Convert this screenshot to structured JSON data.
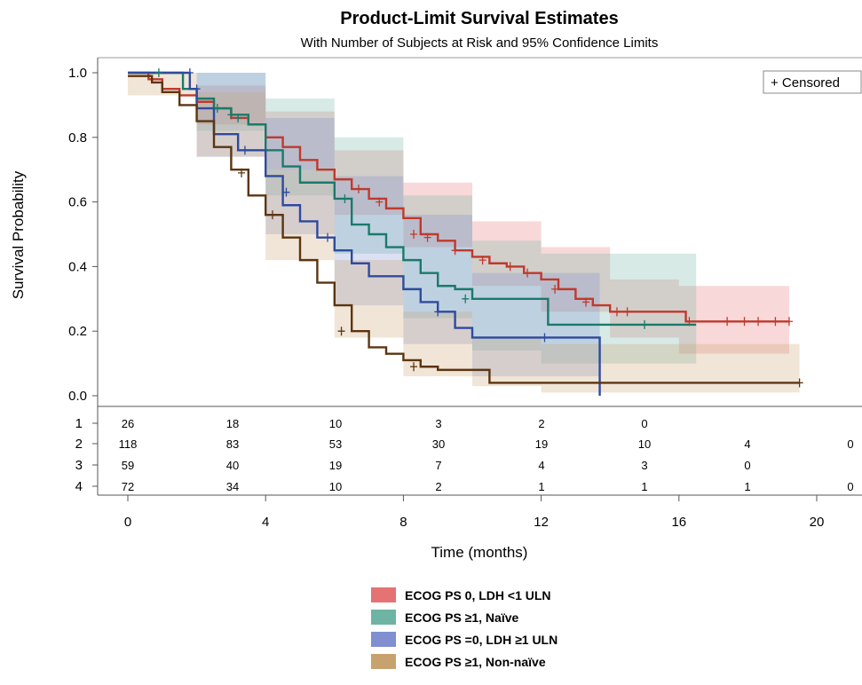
{
  "chart_data": {
    "type": "line",
    "title": "Product-Limit Survival Estimates",
    "subtitle": "With Number of Subjects at Risk and 95% Confidence Limits",
    "xlabel": "Time (months)",
    "ylabel": "Survival Probability",
    "xlim": [
      0,
      21
    ],
    "ylim": [
      0,
      1
    ],
    "x_ticks": [
      "0",
      "4",
      "8",
      "12",
      "16",
      "20"
    ],
    "y_ticks": [
      "0.0",
      "0.2",
      "0.4",
      "0.6",
      "0.8",
      "1.0"
    ],
    "censored_legend": "+ Censored",
    "risk_times": [
      0,
      3,
      6,
      9,
      12,
      15,
      18,
      21
    ],
    "series": [
      {
        "name": "ECOG PS 0, LDH <1 ULN",
        "color": "#c0392b",
        "band_color": "#e57373",
        "risk_label": "2",
        "at_risk": [
          "118",
          "83",
          "53",
          "30",
          "19",
          "10",
          "4",
          "0"
        ],
        "steps": [
          [
            0,
            1.0
          ],
          [
            0.6,
            0.98
          ],
          [
            1.0,
            0.95
          ],
          [
            1.5,
            0.93
          ],
          [
            2.0,
            0.91
          ],
          [
            2.5,
            0.89
          ],
          [
            3.0,
            0.86
          ],
          [
            3.5,
            0.84
          ],
          [
            4.0,
            0.8
          ],
          [
            4.5,
            0.77
          ],
          [
            5.0,
            0.73
          ],
          [
            5.5,
            0.7
          ],
          [
            6.0,
            0.67
          ],
          [
            6.5,
            0.64
          ],
          [
            7.0,
            0.61
          ],
          [
            7.5,
            0.58
          ],
          [
            8.0,
            0.55
          ],
          [
            8.5,
            0.5
          ],
          [
            9.0,
            0.48
          ],
          [
            9.5,
            0.45
          ],
          [
            10.0,
            0.43
          ],
          [
            10.5,
            0.41
          ],
          [
            11.0,
            0.4
          ],
          [
            11.5,
            0.38
          ],
          [
            12.0,
            0.36
          ],
          [
            12.5,
            0.33
          ],
          [
            13.0,
            0.3
          ],
          [
            13.5,
            0.28
          ],
          [
            14.0,
            0.26
          ],
          [
            16.2,
            0.23
          ],
          [
            19.2,
            0.23
          ]
        ],
        "band": [
          [
            0,
            1.0,
            1.0
          ],
          [
            2,
            0.96,
            0.84
          ],
          [
            4,
            0.88,
            0.7
          ],
          [
            6,
            0.76,
            0.56
          ],
          [
            8,
            0.66,
            0.46
          ],
          [
            10,
            0.54,
            0.34
          ],
          [
            12,
            0.46,
            0.26
          ],
          [
            14,
            0.36,
            0.18
          ],
          [
            16,
            0.34,
            0.13
          ],
          [
            19.2,
            0.34,
            0.13
          ]
        ],
        "censors": [
          [
            6.7,
            0.64
          ],
          [
            7.3,
            0.6
          ],
          [
            8.3,
            0.5
          ],
          [
            8.7,
            0.49
          ],
          [
            9.5,
            0.45
          ],
          [
            10.3,
            0.42
          ],
          [
            11.1,
            0.4
          ],
          [
            11.6,
            0.38
          ],
          [
            12.4,
            0.33
          ],
          [
            13.3,
            0.29
          ],
          [
            14.2,
            0.26
          ],
          [
            14.5,
            0.26
          ],
          [
            16.3,
            0.23
          ],
          [
            17.4,
            0.23
          ],
          [
            17.9,
            0.23
          ],
          [
            18.3,
            0.23
          ],
          [
            18.8,
            0.23
          ],
          [
            19.2,
            0.23
          ]
        ]
      },
      {
        "name": "ECOG PS ≥1, Naïve",
        "color": "#1a7a6a",
        "band_color": "#6fb3a5",
        "risk_label": "1",
        "at_risk": [
          "26",
          "18",
          "10",
          "3",
          "2",
          "0",
          "",
          ""
        ],
        "steps": [
          [
            0,
            1.0
          ],
          [
            1.6,
            0.95
          ],
          [
            2.0,
            0.92
          ],
          [
            2.5,
            0.89
          ],
          [
            3.0,
            0.87
          ],
          [
            3.5,
            0.84
          ],
          [
            4.0,
            0.76
          ],
          [
            4.5,
            0.71
          ],
          [
            5.0,
            0.66
          ],
          [
            6.0,
            0.61
          ],
          [
            6.5,
            0.53
          ],
          [
            7.0,
            0.5
          ],
          [
            7.5,
            0.46
          ],
          [
            8.0,
            0.42
          ],
          [
            8.5,
            0.38
          ],
          [
            9.0,
            0.34
          ],
          [
            9.5,
            0.33
          ],
          [
            10.0,
            0.3
          ],
          [
            12.2,
            0.22
          ],
          [
            16.5,
            0.22
          ]
        ],
        "band": [
          [
            0,
            1.0,
            1.0
          ],
          [
            2,
            1.0,
            0.82
          ],
          [
            4,
            0.92,
            0.62
          ],
          [
            6,
            0.8,
            0.44
          ],
          [
            8,
            0.62,
            0.24
          ],
          [
            10,
            0.48,
            0.14
          ],
          [
            12,
            0.44,
            0.1
          ],
          [
            16.5,
            0.44,
            0.07
          ]
        ],
        "censors": [
          [
            0.9,
            1.0
          ],
          [
            2.6,
            0.89
          ],
          [
            3.0,
            0.87
          ],
          [
            3.2,
            0.86
          ],
          [
            6.3,
            0.61
          ],
          [
            9.8,
            0.3
          ],
          [
            15.0,
            0.22
          ]
        ]
      },
      {
        "name": "ECOG PS =0, LDH ≥1 ULN",
        "color": "#2f4a9e",
        "band_color": "#7f8fd0",
        "risk_label": "3",
        "at_risk": [
          "59",
          "40",
          "19",
          "7",
          "4",
          "3",
          "0",
          ""
        ],
        "steps": [
          [
            0,
            1.0
          ],
          [
            1.8,
            0.95
          ],
          [
            2.0,
            0.89
          ],
          [
            2.5,
            0.81
          ],
          [
            3.2,
            0.76
          ],
          [
            4.0,
            0.68
          ],
          [
            4.5,
            0.59
          ],
          [
            5.0,
            0.54
          ],
          [
            5.5,
            0.49
          ],
          [
            6.0,
            0.45
          ],
          [
            6.5,
            0.41
          ],
          [
            7.0,
            0.37
          ],
          [
            8.0,
            0.33
          ],
          [
            8.5,
            0.29
          ],
          [
            9.0,
            0.26
          ],
          [
            9.5,
            0.21
          ],
          [
            10.0,
            0.18
          ],
          [
            13.7,
            0.0
          ]
        ],
        "band": [
          [
            0,
            1.0,
            1.0
          ],
          [
            2,
            1.0,
            0.74
          ],
          [
            4,
            0.86,
            0.5
          ],
          [
            6,
            0.68,
            0.28
          ],
          [
            8,
            0.56,
            0.16
          ],
          [
            10,
            0.38,
            0.06
          ],
          [
            13.7,
            0.38,
            0.01
          ]
        ],
        "censors": [
          [
            2.0,
            0.95
          ],
          [
            1.8,
            1.0
          ],
          [
            3.4,
            0.76
          ],
          [
            4.6,
            0.63
          ],
          [
            5.8,
            0.49
          ],
          [
            9.0,
            0.26
          ],
          [
            12.1,
            0.18
          ]
        ]
      },
      {
        "name": "ECOG PS ≥1, Non-naïve",
        "color": "#5c3510",
        "band_color": "#c8a26e",
        "risk_label": "4",
        "at_risk": [
          "72",
          "34",
          "10",
          "2",
          "1",
          "1",
          "1",
          "0"
        ],
        "steps": [
          [
            0,
            0.99
          ],
          [
            0.7,
            0.97
          ],
          [
            1.0,
            0.94
          ],
          [
            1.5,
            0.9
          ],
          [
            2.0,
            0.85
          ],
          [
            2.5,
            0.77
          ],
          [
            3.0,
            0.7
          ],
          [
            3.5,
            0.62
          ],
          [
            4.0,
            0.56
          ],
          [
            4.5,
            0.49
          ],
          [
            5.0,
            0.42
          ],
          [
            5.5,
            0.35
          ],
          [
            6.0,
            0.28
          ],
          [
            6.5,
            0.2
          ],
          [
            7.0,
            0.15
          ],
          [
            7.5,
            0.13
          ],
          [
            8.0,
            0.11
          ],
          [
            8.5,
            0.09
          ],
          [
            9.0,
            0.08
          ],
          [
            10.5,
            0.04
          ],
          [
            19.5,
            0.04
          ]
        ],
        "band": [
          [
            0,
            1.0,
            0.93
          ],
          [
            2,
            0.94,
            0.74
          ],
          [
            4,
            0.7,
            0.42
          ],
          [
            6,
            0.42,
            0.18
          ],
          [
            8,
            0.26,
            0.06
          ],
          [
            10,
            0.18,
            0.03
          ],
          [
            12,
            0.16,
            0.01
          ],
          [
            19.5,
            0.16,
            0.01
          ]
        ],
        "censors": [
          [
            3.3,
            0.69
          ],
          [
            4.2,
            0.56
          ],
          [
            6.2,
            0.2
          ],
          [
            8.3,
            0.09
          ],
          [
            19.5,
            0.04
          ]
        ]
      }
    ],
    "legend_order": [
      0,
      1,
      2,
      3
    ]
  }
}
